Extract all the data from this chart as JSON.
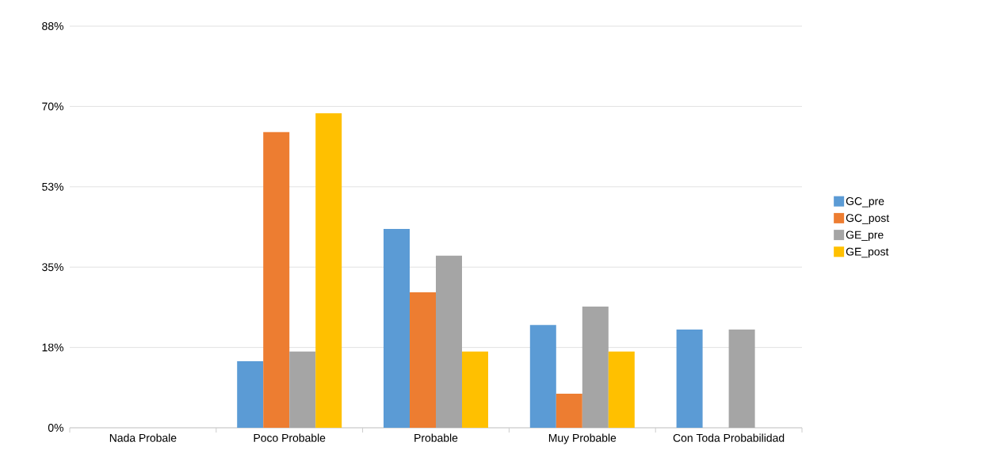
{
  "chart_data": {
    "type": "bar",
    "categories": [
      "Nada Probale",
      "Poco Probable",
      "Probable",
      "Muy Probable",
      "Con Toda Probabilidad"
    ],
    "series": [
      {
        "name": "GC_pre",
        "color": "#5b9bd5",
        "values": [
          0,
          14.5,
          43.3,
          22.4,
          21.4
        ]
      },
      {
        "name": "GC_post",
        "color": "#ed7d31",
        "values": [
          0,
          64.4,
          29.5,
          7.4,
          0
        ]
      },
      {
        "name": "GE_pre",
        "color": "#a5a5a5",
        "values": [
          0,
          16.6,
          37.5,
          26.4,
          21.4
        ]
      },
      {
        "name": "GE_post",
        "color": "#ffc000",
        "values": [
          0,
          68.5,
          16.6,
          16.6,
          0
        ]
      }
    ],
    "ylim": [
      0,
      87.5
    ],
    "yticks": [
      {
        "value": 0,
        "label": "0%"
      },
      {
        "value": 17.5,
        "label": "18%"
      },
      {
        "value": 35,
        "label": "35%"
      },
      {
        "value": 52.5,
        "label": "53%"
      },
      {
        "value": 70,
        "label": "70%"
      },
      {
        "value": 87.5,
        "label": "88%"
      }
    ],
    "grid": "y",
    "legend": "right"
  }
}
